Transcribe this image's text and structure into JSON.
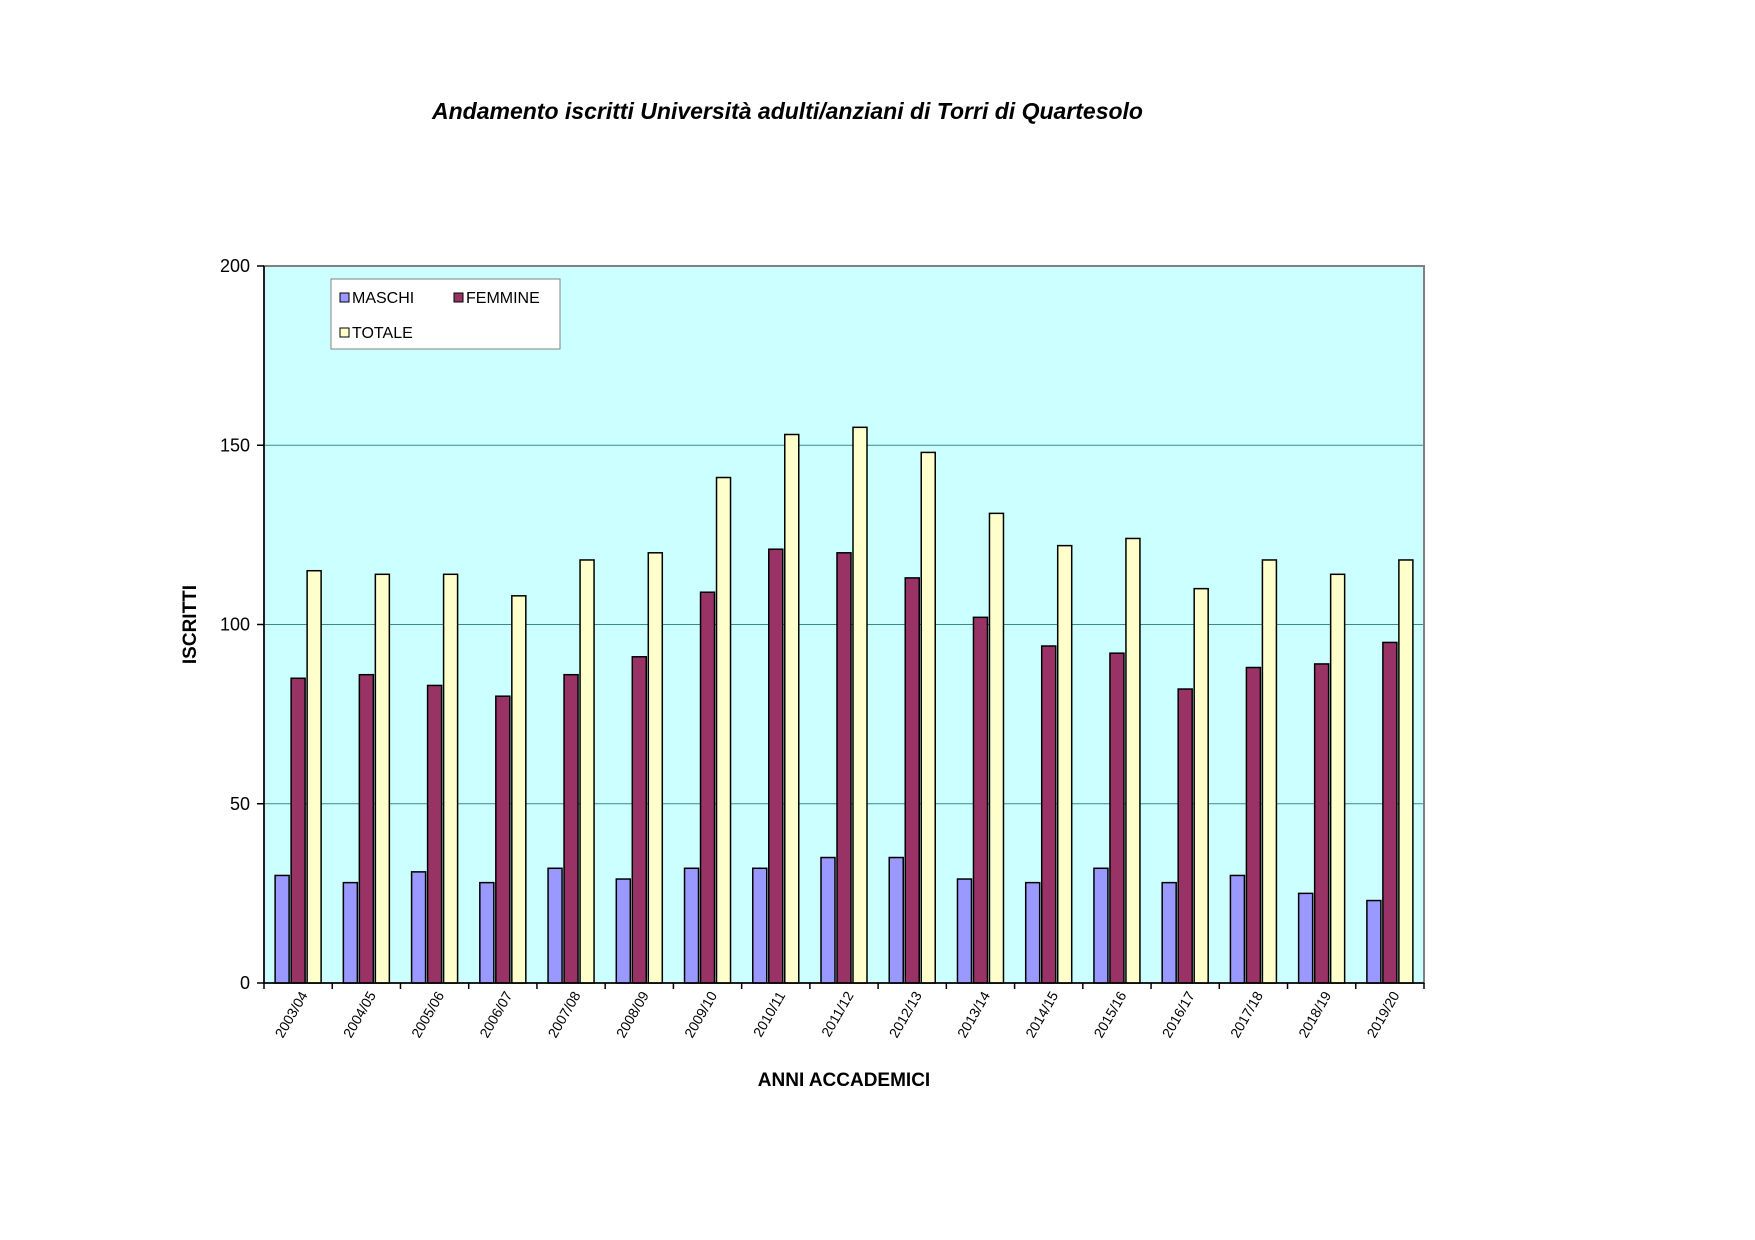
{
  "chart_data": {
    "type": "bar",
    "title": "Andamento iscritti Università adulti/anziani di Torri di Quartesolo",
    "xlabel": "ANNI ACCADEMICI",
    "ylabel": "ISCRITTI",
    "ylim": [
      0,
      200
    ],
    "yticks": [
      0,
      50,
      100,
      150,
      200
    ],
    "grid": true,
    "legend_position": "top-left",
    "plot_background": "#ccffff",
    "categories": [
      "2003/04",
      "2004/05",
      "2005/06",
      "2006/07",
      "2007/08",
      "2008/09",
      "2009/10",
      "2010/11",
      "2011/12",
      "2012/13",
      "2013/14",
      "2014/15",
      "2015/16",
      "2016/17",
      "2017/18",
      "2018/19",
      "2019/20"
    ],
    "series": [
      {
        "name": "MASCHI",
        "color": "#9999ff",
        "values": [
          30,
          28,
          31,
          28,
          32,
          29,
          32,
          32,
          35,
          35,
          29,
          28,
          32,
          28,
          30,
          25,
          23
        ]
      },
      {
        "name": "FEMMINE",
        "color": "#993366",
        "values": [
          85,
          86,
          83,
          80,
          86,
          91,
          109,
          121,
          120,
          113,
          102,
          94,
          92,
          82,
          88,
          89,
          95
        ]
      },
      {
        "name": "TOTALE",
        "color": "#ffffcc",
        "values": [
          115,
          114,
          114,
          108,
          118,
          120,
          141,
          153,
          155,
          148,
          131,
          122,
          124,
          110,
          118,
          114,
          118
        ]
      }
    ]
  }
}
